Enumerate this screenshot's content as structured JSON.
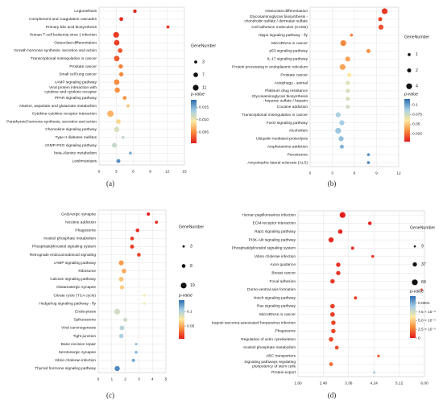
{
  "chart_data": [
    {
      "type": "scatter",
      "label": "(a)",
      "categories": [
        "Legionellosis",
        "Complement and coagulation cascades",
        "Primary bile acid biosynthesis",
        "Human T-cell leukemia virus 1 infection",
        "Osteoclast differentiation",
        "Growth hormone synthesis, secretion and action",
        "Transcriptional misregulation in cancer",
        "Prostate cancer",
        "Small cell lung cancer",
        "cAMP signaling pathway",
        "Viral protein interaction with cytokine and cytokine receptor",
        "PPAR signaling pathway",
        "Alanine, aspartate and glutamate metabolism",
        "Cytokine-cytokine receptor interaction",
        "Parathyroid hormone synthesis, secretion and action",
        "Chemokine signaling pathway",
        "Type II diabetes mellitus",
        "cGMP-PKG signaling pathway",
        "beta-Alanine metabolism",
        "Leishmaniasis"
      ],
      "values": [
        6.3,
        3.9,
        12.1,
        3.0,
        3.1,
        3.7,
        3.1,
        3.8,
        3.9,
        3.1,
        3.2,
        4.5,
        5.1,
        2.0,
        3.4,
        3.1,
        4.2,
        2.7,
        5.5,
        3.4
      ],
      "sizes": [
        4,
        5,
        3,
        11,
        10,
        7,
        10,
        6,
        6,
        10,
        9,
        5,
        3,
        13,
        7,
        9,
        3,
        8,
        3,
        5
      ],
      "pvalues": [
        0.0008,
        0.0012,
        0.0015,
        0.0018,
        0.002,
        0.0028,
        0.003,
        0.0045,
        0.0048,
        0.005,
        0.0052,
        0.0055,
        0.0075,
        0.0068,
        0.0085,
        0.011,
        0.012,
        0.012,
        0.015,
        0.0165
      ],
      "xlim": [
        0,
        15
      ],
      "xticks": [
        0,
        3,
        6,
        9,
        12,
        15
      ],
      "grid": true,
      "size_legend_title": "GeneNumber",
      "size_legend": [
        3,
        7,
        11
      ],
      "colorbar_title": "p-value",
      "clim": [
        0.0005,
        0.018
      ],
      "cticks": [
        0.015,
        {
          "value": 0.01,
          "label": "0.010"
        },
        0.005
      ],
      "colormap": [
        "#e41a1c",
        "#f68a3c",
        "#fde9a0",
        "#a6cfe5",
        "#2b6cb0"
      ]
    },
    {
      "type": "scatter",
      "label": "(b)",
      "categories": [
        "Osteoclast differentiation",
        "Glycosaminoglycan biosynthesis - chondroitin sulfate / dermatan sulfate",
        "Cell adhesion molecules (CAMs)",
        "Hippo signaling pathway - fly",
        "MicroRNAs in cancer",
        "p53 signaling pathway",
        "IL-17 signaling pathway",
        "Protein processing in endoplasmic reticulum",
        "Prostate cancer",
        "Autophagy - animal",
        "Platinum drug resistance",
        "Glycosaminoglycan biosynthesis - heparan sulfate / heparin",
        "Cocaine addiction",
        "Transcriptional misregulation in cancer",
        "FoxO signaling pathway",
        "Alcoholism",
        "Ubiquitin mediated proteolysis",
        "Amphetamine addiction",
        "Peroxisome",
        "Amyotrophic lateral sclerosis (ALS)"
      ],
      "values": [
        10.1,
        9.5,
        9.6,
        5.6,
        4.5,
        7.9,
        5.1,
        4.4,
        5.3,
        5.1,
        5.1,
        5.1,
        5.1,
        3.8,
        4.3,
        3.8,
        4.2,
        4.3,
        7.9,
        7.9
      ],
      "sizes": [
        4,
        2,
        3,
        1,
        4,
        2,
        3,
        4,
        2,
        2,
        2,
        2,
        2,
        3,
        3,
        4,
        3,
        2,
        1,
        1
      ],
      "pvalues": [
        0.012,
        0.015,
        0.018,
        0.03,
        0.032,
        0.035,
        0.04,
        0.04,
        0.06,
        0.07,
        0.072,
        0.072,
        0.074,
        0.085,
        0.088,
        0.09,
        0.092,
        0.095,
        0.105,
        0.108
      ],
      "xlim": [
        0,
        12
      ],
      "xticks": [
        0,
        3,
        6,
        9,
        12
      ],
      "grid": true,
      "size_legend_title": "GeneNumber",
      "size_legend": [
        1,
        2,
        4
      ],
      "colorbar_title": "p-value",
      "clim": [
        0.005,
        0.115
      ],
      "cticks": [
        0.1,
        0.075,
        0.05,
        0.025
      ],
      "colormap": [
        "#e41a1c",
        "#f68a3c",
        "#fde9a0",
        "#a6cfe5",
        "#2b6cb0"
      ]
    },
    {
      "type": "scatter",
      "label": "(c)",
      "categories": [
        "GABAergic synapse",
        "Nicotine addiction",
        "Phagosome",
        "Inositol phosphate metabolism",
        "Phosphatidylinositol signaling system",
        "Retrograde endocannabinoid signaling",
        "cAMP signaling pathway",
        "Ribosome",
        "Calcium signaling pathway",
        "Glutamatergic synapse",
        "Citrate cycle (TCA cycle)",
        "Hedgehog signaling pathway - fly",
        "Endocytosis",
        "Spliceosome",
        "Viral carcinogenesis",
        "Tight junction",
        "Base excision repair",
        "Serotonergic synapse",
        "Vibrio cholerae infection",
        "Thyroid hormone signaling pathway"
      ],
      "values": [
        3.7,
        4.3,
        2.9,
        2.5,
        2.5,
        3.0,
        1.7,
        1.9,
        1.7,
        1.75,
        3.4,
        3.4,
        1.4,
        2.0,
        1.75,
        1.7,
        2.8,
        2.8,
        2.6,
        1.4
      ],
      "sizes": [
        6,
        5,
        8,
        8,
        9,
        8,
        14,
        12,
        13,
        10,
        3,
        3,
        19,
        9,
        13,
        11,
        4,
        5,
        6,
        15
      ],
      "pvalues": [
        0.006,
        0.008,
        0.012,
        0.014,
        0.015,
        0.018,
        0.045,
        0.05,
        0.06,
        0.062,
        0.075,
        0.076,
        0.09,
        0.092,
        0.1,
        0.105,
        0.11,
        0.112,
        0.12,
        0.13
      ],
      "xlim": [
        0,
        5
      ],
      "xticks": [
        0,
        1,
        2,
        3,
        4,
        5
      ],
      "grid": true,
      "size_legend_title": "GeneNumber",
      "size_legend": [
        3,
        8,
        19
      ],
      "colorbar_title": "p-value",
      "clim": [
        0.005,
        0.14
      ],
      "cticks": [
        0.1,
        0.05
      ],
      "colormap": [
        "#e41a1c",
        "#f68a3c",
        "#fde9a0",
        "#a6cfe5",
        "#2b6cb0"
      ]
    },
    {
      "type": "scatter",
      "label": "(d)",
      "categories": [
        "Human papillomavirus infection",
        "ECM-receptor interaction",
        "Rap1 signaling pathway",
        "PI3K-Akt signaling pathway",
        "Phosphatidylinositol signaling system",
        "Vibrio cholerae infection",
        "Axon guidance",
        "Breast cancer",
        "Focal adhesion",
        "Dorso-ventral axis formation",
        "Notch signaling pathway",
        "Ras signaling pathway",
        "MicroRNAs in cancer",
        "Kaposi sarcoma-associated herpesvirus infection",
        "Phagosome",
        "Regulation of actin cytoskeleton",
        "Inositol phosphate metabolism",
        "ABC transporters",
        "Signaling pathways regulating pluripotency of stem cells",
        "Protein export"
      ],
      "values": [
        3.15,
        4.1,
        3.07,
        2.75,
        3.5,
        4.2,
        3.0,
        3.0,
        2.8,
        5.9,
        3.6,
        2.8,
        2.8,
        2.83,
        2.83,
        2.75,
        2.95,
        4.4,
        2.75,
        4.25
      ],
      "sizes": [
        69,
        27,
        41,
        55,
        20,
        16,
        38,
        38,
        41,
        9,
        20,
        42,
        43,
        40,
        40,
        42,
        30,
        15,
        30,
        9
      ],
      "pvalues": [
        1e-06,
        2e-06,
        3e-06,
        4e-06,
        5e-06,
        6e-06,
        6e-06,
        7e-06,
        8e-06,
        8e-06,
        9e-06,
        1e-05,
        1e-05,
        1.1e-05,
        1.2e-05,
        1.3e-05,
        1.4e-05,
        1.8e-05,
        2.2e-05,
        9.5e-05
      ],
      "xlim": [
        1.6,
        6
      ],
      "xticks": [
        {
          "value": 1.6,
          "label": "1.60"
        },
        2.48,
        3.36,
        4.24,
        5.12,
        {
          "value": 6,
          "label": "6.00"
        }
      ],
      "grid": true,
      "size_legend_title": "GeneNumber",
      "size_legend": [
        9,
        37,
        69
      ],
      "colorbar_title": "p-value",
      "clim": [
        0,
        0.00012
      ],
      "cticks": [
        0.0001,
        {
          "value": 7.5e-05,
          "label": "7.5 × 10⁻⁵"
        },
        {
          "value": 5e-05,
          "label": "5.0 × 10⁻⁵"
        },
        {
          "value": 2.5e-05,
          "label": "2.5 × 10⁻⁵"
        },
        0
      ],
      "colormap": [
        "#e41a1c",
        "#f68a3c",
        "#fde9a0",
        "#a6cfe5",
        "#2b6cb0"
      ]
    }
  ]
}
